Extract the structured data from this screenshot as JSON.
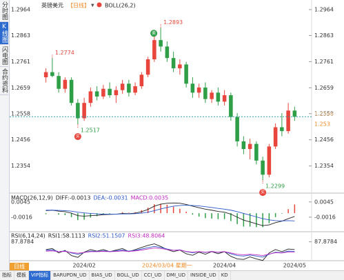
{
  "sidebar": {
    "tabs": [
      "分时图",
      "K线图",
      "闪电图",
      "合约资料"
    ],
    "active": 1
  },
  "chart_data": {
    "type": "candlestick",
    "title": "英镑美元",
    "period": "【日线】",
    "indicator": "BOLL(26,2)",
    "dates": [
      null,
      null,
      null,
      null,
      null,
      null,
      "2024/02",
      null,
      null,
      null,
      null,
      null,
      null,
      null,
      null,
      null,
      null,
      null,
      null,
      "2024/03/04 星期一",
      null,
      null,
      null,
      null,
      null,
      null,
      null,
      null,
      "2024/04",
      null,
      null,
      null,
      null,
      null,
      null,
      null,
      null,
      null,
      null,
      "2024/05"
    ],
    "selected": 19,
    "open": [
      1.27,
      1.272,
      1.2705,
      1.2655,
      1.269,
      1.26,
      1.254,
      1.26,
      1.2645,
      1.2625,
      1.2655,
      1.263,
      1.265,
      1.2675,
      1.264,
      1.2665,
      1.271,
      1.277,
      1.2845,
      1.282,
      1.2775,
      1.2735,
      1.275,
      1.2675,
      1.264,
      1.266,
      1.2615,
      1.264,
      1.2605,
      1.263,
      1.2545,
      1.245,
      1.242,
      1.244,
      1.2375,
      1.232,
      1.243,
      1.2505,
      1.249,
      1.257
    ],
    "high": [
      1.2735,
      1.2774,
      1.272,
      1.27,
      1.27,
      1.2615,
      1.262,
      1.266,
      1.2665,
      1.267,
      1.268,
      1.2665,
      1.269,
      1.269,
      1.268,
      1.272,
      1.278,
      1.286,
      1.2893,
      1.284,
      1.28,
      1.277,
      1.276,
      1.27,
      1.2675,
      1.268,
      1.265,
      1.266,
      1.265,
      1.264,
      1.256,
      1.247,
      1.246,
      1.245,
      1.239,
      1.244,
      1.252,
      1.256,
      1.26,
      1.2585
    ],
    "low": [
      1.268,
      1.27,
      1.264,
      1.264,
      1.259,
      1.2517,
      1.253,
      1.2585,
      1.261,
      1.2615,
      1.262,
      1.26,
      1.2635,
      1.2625,
      1.263,
      1.2655,
      1.27,
      1.276,
      1.28,
      1.276,
      1.272,
      1.271,
      1.266,
      1.262,
      1.262,
      1.26,
      1.26,
      1.259,
      1.259,
      1.253,
      1.243,
      1.24,
      1.238,
      1.236,
      1.2299,
      1.231,
      1.242,
      1.247,
      1.248,
      1.253
    ],
    "close": [
      1.272,
      1.2705,
      1.2655,
      1.269,
      1.26,
      1.254,
      1.26,
      1.2645,
      1.2625,
      1.2655,
      1.263,
      1.265,
      1.2675,
      1.264,
      1.2665,
      1.271,
      1.277,
      1.2845,
      1.282,
      1.2775,
      1.2735,
      1.275,
      1.2675,
      1.264,
      1.266,
      1.2615,
      1.264,
      1.2605,
      1.263,
      1.2545,
      1.245,
      1.242,
      1.244,
      1.2375,
      1.232,
      1.243,
      1.2505,
      1.249,
      1.257,
      1.2546
    ],
    "colors": {
      "up": "#e8453c",
      "down": "#2e9e47"
    },
    "ylim": [
      1.2275,
      1.2988
    ],
    "yticks": [
      1.2964,
      1.2863,
      1.2761,
      1.2659,
      1.2558,
      1.2456,
      1.2354
    ],
    "annotations": [
      {
        "value": 1.2774
      },
      {
        "value": 1.2517,
        "signal": "买",
        "signal_color": "#e8453c"
      },
      {
        "value": 1.2893,
        "signal": "卖",
        "signal_color": "#2e9e47"
      },
      {
        "value": 1.2299,
        "signal": "买",
        "signal_color": "#e8453c"
      }
    ],
    "price_labels": [
      1.2546,
      1.253
    ],
    "macd": {
      "header": [
        {
          "text": "MACD(26,12,9)",
          "color": "#222"
        },
        {
          "text": "DIFF:-0.0013",
          "color": "#222"
        },
        {
          "text": "DEA:-0.0031",
          "color": "#2b56c9"
        },
        {
          "text": "MACD:0.0035",
          "color": "#c02ac0"
        }
      ],
      "ylim": [
        -0.0069,
        0.0075
      ],
      "yticks": [
        0.0045,
        -0.0016
      ],
      "diff": {
        "color": "#222",
        "values": [
          0.001,
          0.0012,
          0.0008,
          0.0006,
          0.0,
          -0.001,
          -0.0012,
          -0.001,
          -0.0009,
          -0.0006,
          -0.0005,
          -0.0004,
          -0.0001,
          -0.0002,
          0.0,
          0.0006,
          0.0015,
          0.0028,
          0.0036,
          0.004,
          0.0041,
          0.004,
          0.0035,
          0.0028,
          0.0022,
          0.0016,
          0.0012,
          0.0007,
          0.0004,
          -0.0004,
          -0.0016,
          -0.0028,
          -0.0035,
          -0.0043,
          -0.005,
          -0.0047,
          -0.0038,
          -0.0032,
          -0.0022,
          -0.0013
        ]
      },
      "dea": {
        "color": "#2b56c9",
        "values": [
          0.0012,
          0.0012,
          0.0011,
          0.001,
          0.0008,
          0.0004,
          0.0001,
          -0.0001,
          -0.0003,
          -0.0004,
          -0.0004,
          -0.0004,
          -0.0003,
          -0.0003,
          -0.0002,
          0.0,
          0.0004,
          0.001,
          0.0017,
          0.0023,
          0.0028,
          0.0031,
          0.0032,
          0.0031,
          0.0029,
          0.0026,
          0.0023,
          0.0019,
          0.0016,
          0.0012,
          0.0006,
          -0.0001,
          -0.0008,
          -0.0015,
          -0.0022,
          -0.0027,
          -0.003,
          -0.0031,
          -0.003,
          -0.0031
        ]
      },
      "hist": {
        "values": [
          -0.0004,
          0.0,
          -0.0006,
          -0.0008,
          -0.0016,
          -0.0028,
          -0.0026,
          -0.0018,
          -0.0012,
          -0.0004,
          -0.0002,
          0.0,
          0.0004,
          0.0002,
          0.0004,
          0.0012,
          0.0022,
          0.0036,
          0.0038,
          0.0034,
          0.0026,
          0.0018,
          0.0006,
          -0.0006,
          -0.0014,
          -0.002,
          -0.0022,
          -0.0024,
          -0.0024,
          -0.0032,
          -0.0044,
          -0.0054,
          -0.0054,
          -0.0056,
          -0.0056,
          -0.004,
          -0.0016,
          -0.0002,
          0.0016,
          0.0035
        ]
      }
    },
    "rsi": {
      "header": [
        {
          "text": "RSI(6,14,24)",
          "color": "#222"
        },
        {
          "text": "RSI1:58.1113",
          "color": "#222"
        },
        {
          "text": "RSI2:51.1507",
          "color": "#2b56c9"
        },
        {
          "text": "RSI3:48.8064",
          "color": "#c02ac0"
        }
      ],
      "ylim": [
        10,
        100
      ],
      "yticks": [
        87.8784
      ],
      "series": [
        {
          "color": "#222",
          "values": [
            58,
            62,
            45,
            55,
            35,
            28,
            48,
            58,
            52,
            58,
            50,
            56,
            62,
            50,
            58,
            66,
            74,
            80,
            70,
            58,
            50,
            56,
            42,
            36,
            48,
            40,
            50,
            42,
            50,
            32,
            22,
            20,
            30,
            22,
            16,
            45,
            58,
            50,
            60,
            58.1113
          ]
        },
        {
          "color": "#2b56c9",
          "values": [
            55,
            57,
            50,
            53,
            45,
            40,
            47,
            52,
            51,
            53,
            51,
            53,
            56,
            52,
            55,
            60,
            65,
            70,
            66,
            60,
            55,
            57,
            50,
            46,
            50,
            47,
            51,
            47,
            50,
            42,
            35,
            33,
            37,
            33,
            29,
            40,
            48,
            46,
            52,
            51.1507
          ]
        },
        {
          "color": "#c02ac0",
          "values": [
            52,
            53,
            50,
            51,
            47,
            44,
            47,
            50,
            50,
            51,
            50,
            51,
            53,
            51,
            53,
            56,
            60,
            64,
            62,
            58,
            55,
            56,
            51,
            48,
            50,
            48,
            50,
            48,
            50,
            45,
            40,
            38,
            40,
            38,
            35,
            41,
            46,
            45,
            49,
            48.8064
          ]
        }
      ]
    }
  },
  "bottom_bar": {
    "period_button": "日线",
    "tabs": [
      "指标",
      "模板",
      "VIP指标",
      "BARUPDN_UD",
      "BIAS_UD",
      "BOLL_UD",
      "CCI_UD",
      "DMI_UD",
      "INSIDE_UD",
      "KD"
    ],
    "active": 2
  }
}
